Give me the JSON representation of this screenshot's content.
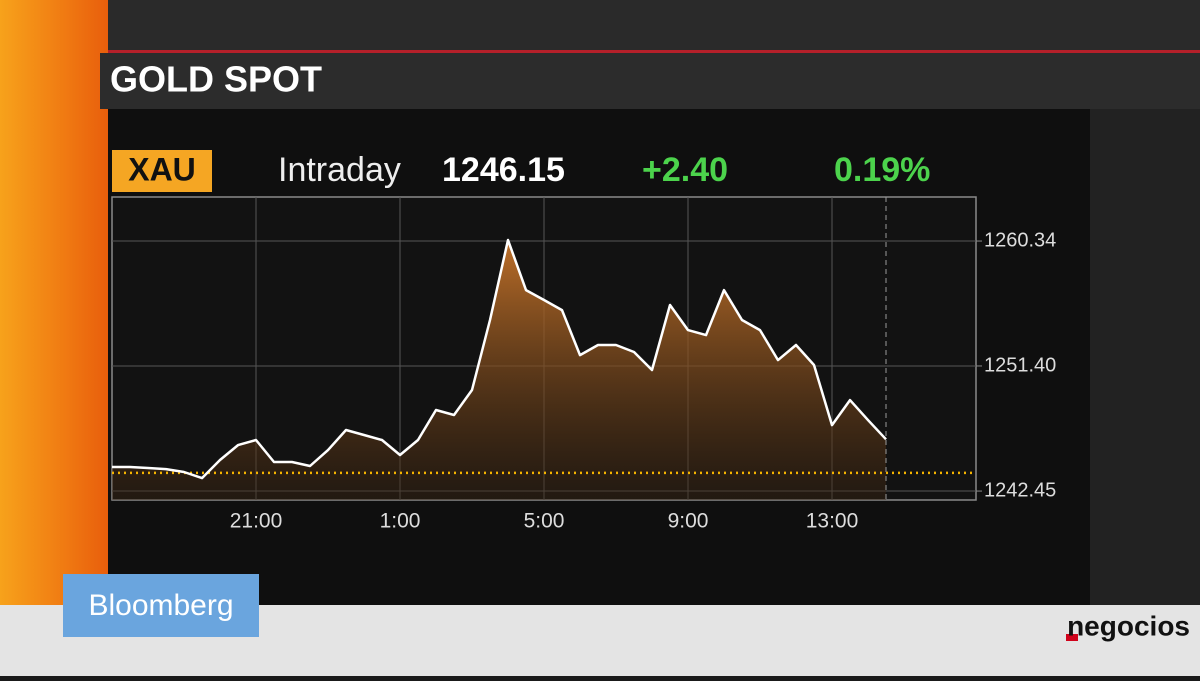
{
  "chart_data": {
    "type": "line",
    "title": "GOLD SPOT",
    "categories": [
      null,
      null,
      null,
      null,
      null,
      null,
      null,
      null,
      "21:00",
      null,
      null,
      null,
      null,
      null,
      null,
      null,
      "1:00",
      null,
      null,
      null,
      null,
      null,
      null,
      null,
      "5:00",
      null,
      null,
      null,
      null,
      null,
      null,
      null,
      "9:00",
      null,
      null,
      null,
      null,
      null,
      null,
      null,
      "13:00",
      null,
      null,
      null,
      null,
      null,
      null,
      null,
      null
    ],
    "values": [
      1244.17,
      1244.17,
      1244.1,
      1244.02,
      1243.81,
      1243.38,
      1244.67,
      1245.74,
      1246.1,
      1244.53,
      1244.53,
      1244.24,
      1245.38,
      1246.82,
      1246.46,
      1246.1,
      1245.03,
      1246.1,
      1248.25,
      1247.89,
      1249.68,
      1254.69,
      1260.41,
      1256.83,
      1256.12,
      1255.4,
      1252.18,
      1252.9,
      1252.9,
      1252.4,
      1251.11,
      1255.76,
      1253.97,
      1253.61,
      1256.83,
      1254.69,
      1253.97,
      1251.82,
      1252.9,
      1251.47,
      1247.17,
      1248.96,
      1247.53,
      1246.15,
      null,
      null,
      null,
      null,
      null
    ],
    "color": "#ffffff",
    "reference_line": 1243.75,
    "reference_color": "#f5b400",
    "ylim": [
      1241.81,
      1263.49
    ],
    "yticks": [
      1242.45,
      {
        "value": 1251.4,
        "label": "1251.40"
      },
      1260.34
    ],
    "grid": true
  },
  "ticker": {
    "symbol": "XAU",
    "period": "Intraday",
    "price": "1246.15",
    "change": "+2.40",
    "change_pct": "0.19%"
  },
  "branding": {
    "network": "Bloomberg",
    "site": "negocios"
  }
}
